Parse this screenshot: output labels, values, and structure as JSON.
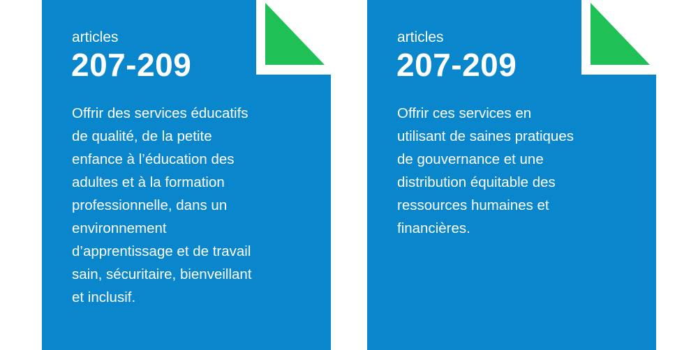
{
  "colors": {
    "card": "#0a86cc",
    "corner": "#1fc157",
    "text": "#ffffff"
  },
  "cards": [
    {
      "label": "articles",
      "number": "207-209",
      "lines": [
        "Offrir des services éducatifs",
        "de qualité, de la petite",
        "enfance à l’éducation des",
        "adultes et à la formation",
        "professionnelle, dans un",
        "environnement",
        "d’apprentissage et de travail",
        "sain, sécuritaire, bienveillant",
        "et inclusif."
      ]
    },
    {
      "label": "articles",
      "number": "207-209",
      "lines": [
        "Offrir ces services en",
        "utilisant de saines pratiques",
        "de gouvernance et une",
        "distribution équitable des",
        "ressources humaines et",
        "financières."
      ]
    }
  ]
}
